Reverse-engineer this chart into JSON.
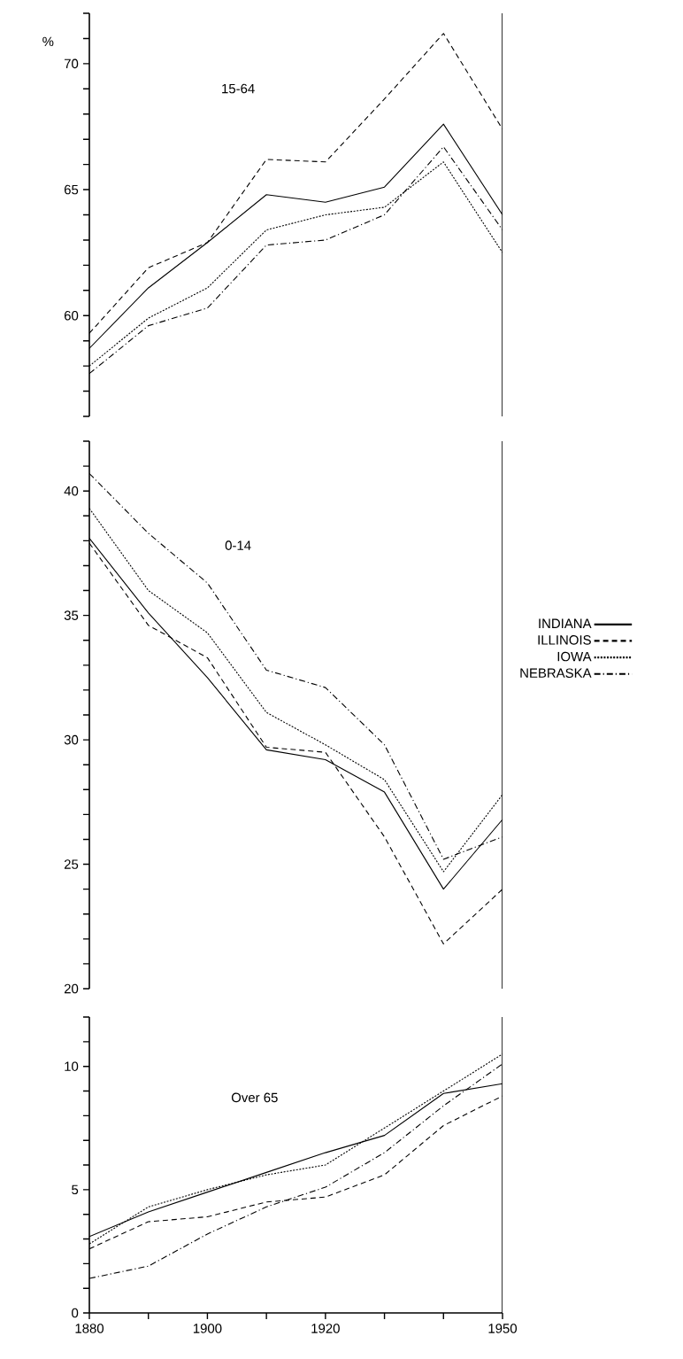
{
  "chart_data": [
    {
      "type": "line",
      "title": "15-64",
      "ylabel": "%",
      "xlim": [
        1880,
        1950
      ],
      "ylim": [
        56,
        72
      ],
      "yticks": [
        {
          "value": 56,
          "label": null
        },
        {
          "value": 57,
          "label": null
        },
        {
          "value": 58,
          "label": null
        },
        {
          "value": 59,
          "label": null
        },
        60,
        {
          "value": 61,
          "label": null
        },
        {
          "value": 62,
          "label": null
        },
        {
          "value": 63,
          "label": null
        },
        {
          "value": 64,
          "label": null
        },
        65,
        {
          "value": 66,
          "label": null
        },
        {
          "value": 67,
          "label": null
        },
        {
          "value": 68,
          "label": null
        },
        {
          "value": 69,
          "label": null
        },
        70,
        {
          "value": 71,
          "label": null
        },
        {
          "value": 72,
          "label": null
        }
      ],
      "tick_labels": "y",
      "x": [
        1880,
        1890,
        1900,
        1910,
        1920,
        1930,
        1940,
        1950
      ],
      "series": [
        {
          "color": "#000000",
          "line_style": "solid",
          "values": [
            58.7,
            61.1,
            62.9,
            64.8,
            64.5,
            65.1,
            67.6,
            64.0
          ]
        },
        {
          "color": "#000000",
          "line_style": "dashed",
          "values": [
            59.3,
            61.9,
            62.9,
            66.2,
            66.1,
            68.6,
            71.2,
            67.4
          ]
        },
        {
          "color": "#000000",
          "line_style": "dotted",
          "values": [
            58.0,
            59.9,
            61.1,
            63.4,
            64.0,
            64.3,
            66.1,
            62.5
          ]
        },
        {
          "color": "#000000",
          "line_style": "dashdot",
          "values": [
            57.7,
            59.6,
            60.3,
            62.8,
            63.0,
            64.0,
            66.7,
            63.4
          ]
        }
      ]
    },
    {
      "type": "line",
      "title": "0-14",
      "xlim": [
        1880,
        1950
      ],
      "ylim": [
        20,
        42
      ],
      "yticks": [
        20,
        {
          "value": 21,
          "label": null
        },
        {
          "value": 22,
          "label": null
        },
        {
          "value": 23,
          "label": null
        },
        {
          "value": 24,
          "label": null
        },
        25,
        {
          "value": 26,
          "label": null
        },
        {
          "value": 27,
          "label": null
        },
        {
          "value": 28,
          "label": null
        },
        {
          "value": 29,
          "label": null
        },
        30,
        {
          "value": 31,
          "label": null
        },
        {
          "value": 32,
          "label": null
        },
        {
          "value": 33,
          "label": null
        },
        {
          "value": 34,
          "label": null
        },
        35,
        {
          "value": 36,
          "label": null
        },
        {
          "value": 37,
          "label": null
        },
        {
          "value": 38,
          "label": null
        },
        {
          "value": 39,
          "label": null
        },
        40,
        {
          "value": 41,
          "label": null
        },
        {
          "value": 42,
          "label": null
        }
      ],
      "tick_labels": "y",
      "legend": "right",
      "x": [
        1880,
        1890,
        1900,
        1910,
        1920,
        1930,
        1940,
        1950
      ],
      "series": [
        {
          "name": "INDIANA",
          "color": "#000000",
          "line_style": "solid",
          "values": [
            38.1,
            35.1,
            32.5,
            29.6,
            29.2,
            27.9,
            24.0,
            26.8
          ]
        },
        {
          "name": "ILLINOIS",
          "color": "#000000",
          "line_style": "dashed",
          "values": [
            37.9,
            34.6,
            33.3,
            29.7,
            29.5,
            26.1,
            21.8,
            24.0
          ]
        },
        {
          "name": "IOWA",
          "color": "#000000",
          "line_style": "dotted",
          "values": [
            39.3,
            36.0,
            34.3,
            31.1,
            29.8,
            28.4,
            24.7,
            27.8
          ]
        },
        {
          "name": "NEBRASKA",
          "color": "#000000",
          "line_style": "dashdot",
          "values": [
            40.7,
            38.3,
            36.3,
            32.8,
            32.1,
            29.8,
            25.2,
            26.1
          ]
        }
      ]
    },
    {
      "type": "line",
      "title": "Over 65",
      "xlim": [
        1880,
        1950
      ],
      "ylim": [
        0,
        12
      ],
      "xticks": [
        1880,
        {
          "value": 1890,
          "label": null
        },
        1900,
        {
          "value": 1910,
          "label": null
        },
        1920,
        {
          "value": 1930,
          "label": null
        },
        {
          "value": 1940,
          "label": null
        },
        1950
      ],
      "yticks": [
        0,
        {
          "value": 1,
          "label": null
        },
        {
          "value": 2,
          "label": null
        },
        {
          "value": 3,
          "label": null
        },
        {
          "value": 4,
          "label": null
        },
        5,
        {
          "value": 6,
          "label": null
        },
        {
          "value": 7,
          "label": null
        },
        {
          "value": 8,
          "label": null
        },
        {
          "value": 9,
          "label": null
        },
        10,
        {
          "value": 11,
          "label": null
        },
        {
          "value": 12,
          "label": null
        }
      ],
      "x": [
        1880,
        1890,
        1900,
        1910,
        1920,
        1930,
        1940,
        1950
      ],
      "series": [
        {
          "color": "#000000",
          "line_style": "solid",
          "values": [
            3.1,
            4.1,
            4.9,
            5.7,
            6.5,
            7.2,
            8.9,
            9.3
          ]
        },
        {
          "color": "#000000",
          "line_style": "dashed",
          "values": [
            2.6,
            3.7,
            3.9,
            4.5,
            4.7,
            5.6,
            7.6,
            8.8
          ]
        },
        {
          "color": "#000000",
          "line_style": "dotted",
          "values": [
            2.8,
            4.3,
            5.0,
            5.6,
            6.0,
            7.5,
            9.0,
            10.5
          ]
        },
        {
          "color": "#000000",
          "line_style": "dashdot",
          "values": [
            1.4,
            1.9,
            3.2,
            4.3,
            5.1,
            6.5,
            8.4,
            10.1
          ]
        }
      ]
    }
  ]
}
